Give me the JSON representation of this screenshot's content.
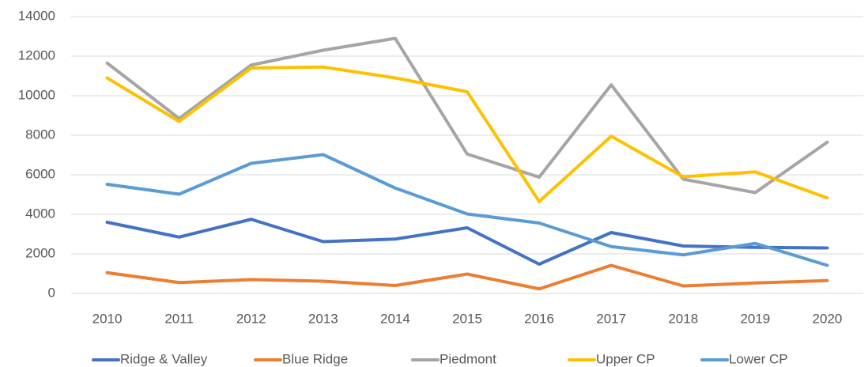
{
  "chart_data": {
    "type": "line",
    "categories": [
      "2010",
      "2011",
      "2012",
      "2013",
      "2014",
      "2015",
      "2016",
      "2017",
      "2018",
      "2019",
      "2020"
    ],
    "series": [
      {
        "name": "Ridge & Valley",
        "color": "#4472c4",
        "values": [
          3600,
          2850,
          3750,
          2620,
          2750,
          3320,
          1480,
          3080,
          2400,
          2330,
          2300
        ]
      },
      {
        "name": "Blue Ridge",
        "color": "#ed7d31",
        "values": [
          1050,
          550,
          700,
          620,
          400,
          980,
          230,
          1420,
          380,
          530,
          650
        ]
      },
      {
        "name": "Piedmont",
        "color": "#a5a5a5",
        "values": [
          11650,
          8850,
          11550,
          12300,
          12900,
          7050,
          5880,
          10550,
          5780,
          5100,
          7650
        ]
      },
      {
        "name": "Upper CP",
        "color": "#ffc000",
        "values": [
          10900,
          8700,
          11400,
          11450,
          10900,
          10200,
          4650,
          7950,
          5900,
          6150,
          4830
        ]
      },
      {
        "name": "Lower CP",
        "color": "#5b9bd5",
        "values": [
          5520,
          5020,
          6580,
          7020,
          5330,
          4020,
          3560,
          2370,
          1950,
          2530,
          1420
        ]
      }
    ],
    "ylim": [
      0,
      14000
    ],
    "yticks": [
      0,
      2000,
      4000,
      6000,
      8000,
      10000,
      12000,
      14000
    ],
    "grid": true,
    "legend": "bottom"
  }
}
